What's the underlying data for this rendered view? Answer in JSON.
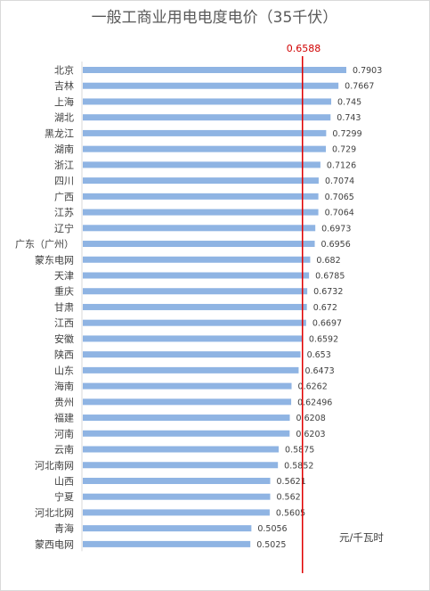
{
  "chart_data": {
    "type": "bar",
    "orientation": "horizontal",
    "title": "一般工商业用电电度电价（35千伏）",
    "unit": "元/千瓦时",
    "categories": [
      "北京",
      "吉林",
      "上海",
      "湖北",
      "黑龙江",
      "湖南",
      "浙江",
      "四川",
      "广西",
      "江苏",
      "辽宁",
      "广东（广州）",
      "蒙东电网",
      "天津",
      "重庆",
      "甘肃",
      "江西",
      "安徽",
      "陕西",
      "山东",
      "海南",
      "贵州",
      "福建",
      "河南",
      "云南",
      "河北南网",
      "山西",
      "宁夏",
      "河北北网",
      "青海",
      "蒙西电网"
    ],
    "values": [
      0.7903,
      0.7667,
      0.745,
      0.743,
      0.7299,
      0.729,
      0.7126,
      0.7074,
      0.7065,
      0.7064,
      0.6973,
      0.6956,
      0.682,
      0.6785,
      0.6732,
      0.672,
      0.6697,
      0.6592,
      0.653,
      0.6473,
      0.6262,
      0.62496,
      0.6208,
      0.6203,
      0.5875,
      0.5852,
      0.5621,
      0.562,
      0.5605,
      0.5056,
      0.5025
    ],
    "reference_line": {
      "value": 0.6588,
      "label": "0.6588",
      "color": "#e00000"
    },
    "bar_color": "#8fb4e3",
    "xlim": [
      0,
      0.7903
    ],
    "grid": false,
    "legend": "none",
    "data_labels": true
  }
}
